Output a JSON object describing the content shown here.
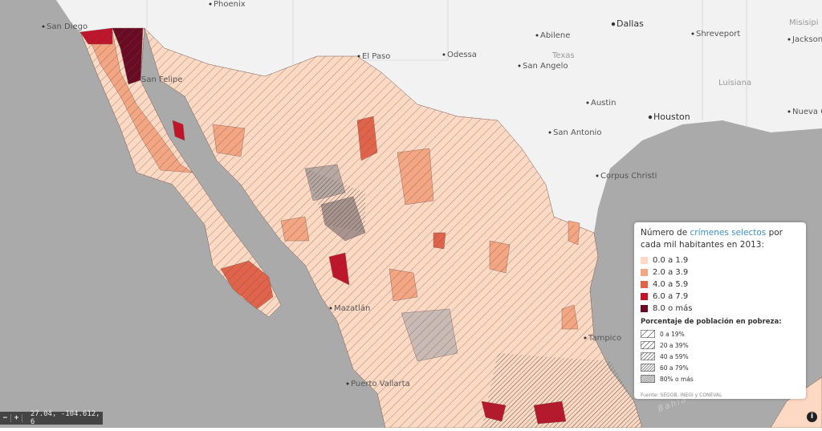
{
  "map": {
    "places": [
      "Phoenix",
      "San Diego",
      "El Paso",
      "Abilene",
      "Dallas",
      "Shreveport",
      "Jackson",
      "Misisipi",
      "Odessa",
      "San Angelo",
      "Texas",
      "Luisiana",
      "Austin",
      "Houston",
      "San Antonio",
      "Nueva Orleans",
      "Corpus Christi",
      "San Felipe",
      "Mazatlán",
      "Tampico",
      "Puerto Vallarta",
      "Bahía de Campeche"
    ],
    "legend": {
      "title_start": "Número de ",
      "title_link": "crímenes selectos",
      "title_end": " por cada mil habitantes en 2013:",
      "crime_classes": [
        {
          "label": "0.0 a 1.9",
          "color": "#fdd9c4"
        },
        {
          "label": "2.0 a 3.9",
          "color": "#f4a582"
        },
        {
          "label": "4.0 a 5.9",
          "color": "#e0634a"
        },
        {
          "label": "6.0 a 7.9",
          "color": "#c0142a"
        },
        {
          "label": "8.0 o más",
          "color": "#6b0a23"
        }
      ],
      "poverty_title": "Porcentaje de población en pobreza:",
      "poverty_classes": [
        "0 a 19%",
        "20 a 39%",
        "40 a 59%",
        "60 a 79%",
        "80% o más"
      ],
      "source": "Fuente: SEGOB, INEGI y CONEVAL"
    },
    "coordinates": "27.04, -104.612, 6",
    "zoom_out": "−",
    "zoom_in": "+",
    "info": "i"
  }
}
